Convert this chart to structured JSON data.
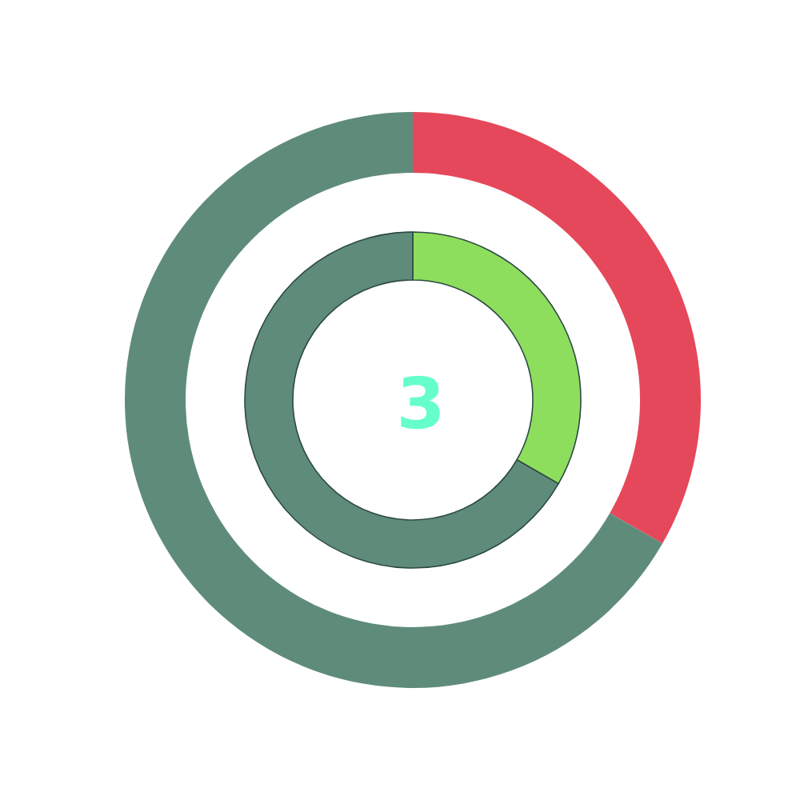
{
  "chart_data": {
    "type": "donut",
    "title": "3",
    "categories": [
      null,
      null
    ],
    "series": [
      {
        "values": [
          33.3,
          66.7
        ],
        "colors": [
          "#e5485a",
          "#5f8c7a"
        ]
      },
      {
        "values": [
          33.3,
          66.7
        ],
        "colors": [
          "#8ede5e",
          "#5f8c7a"
        ]
      }
    ]
  }
}
